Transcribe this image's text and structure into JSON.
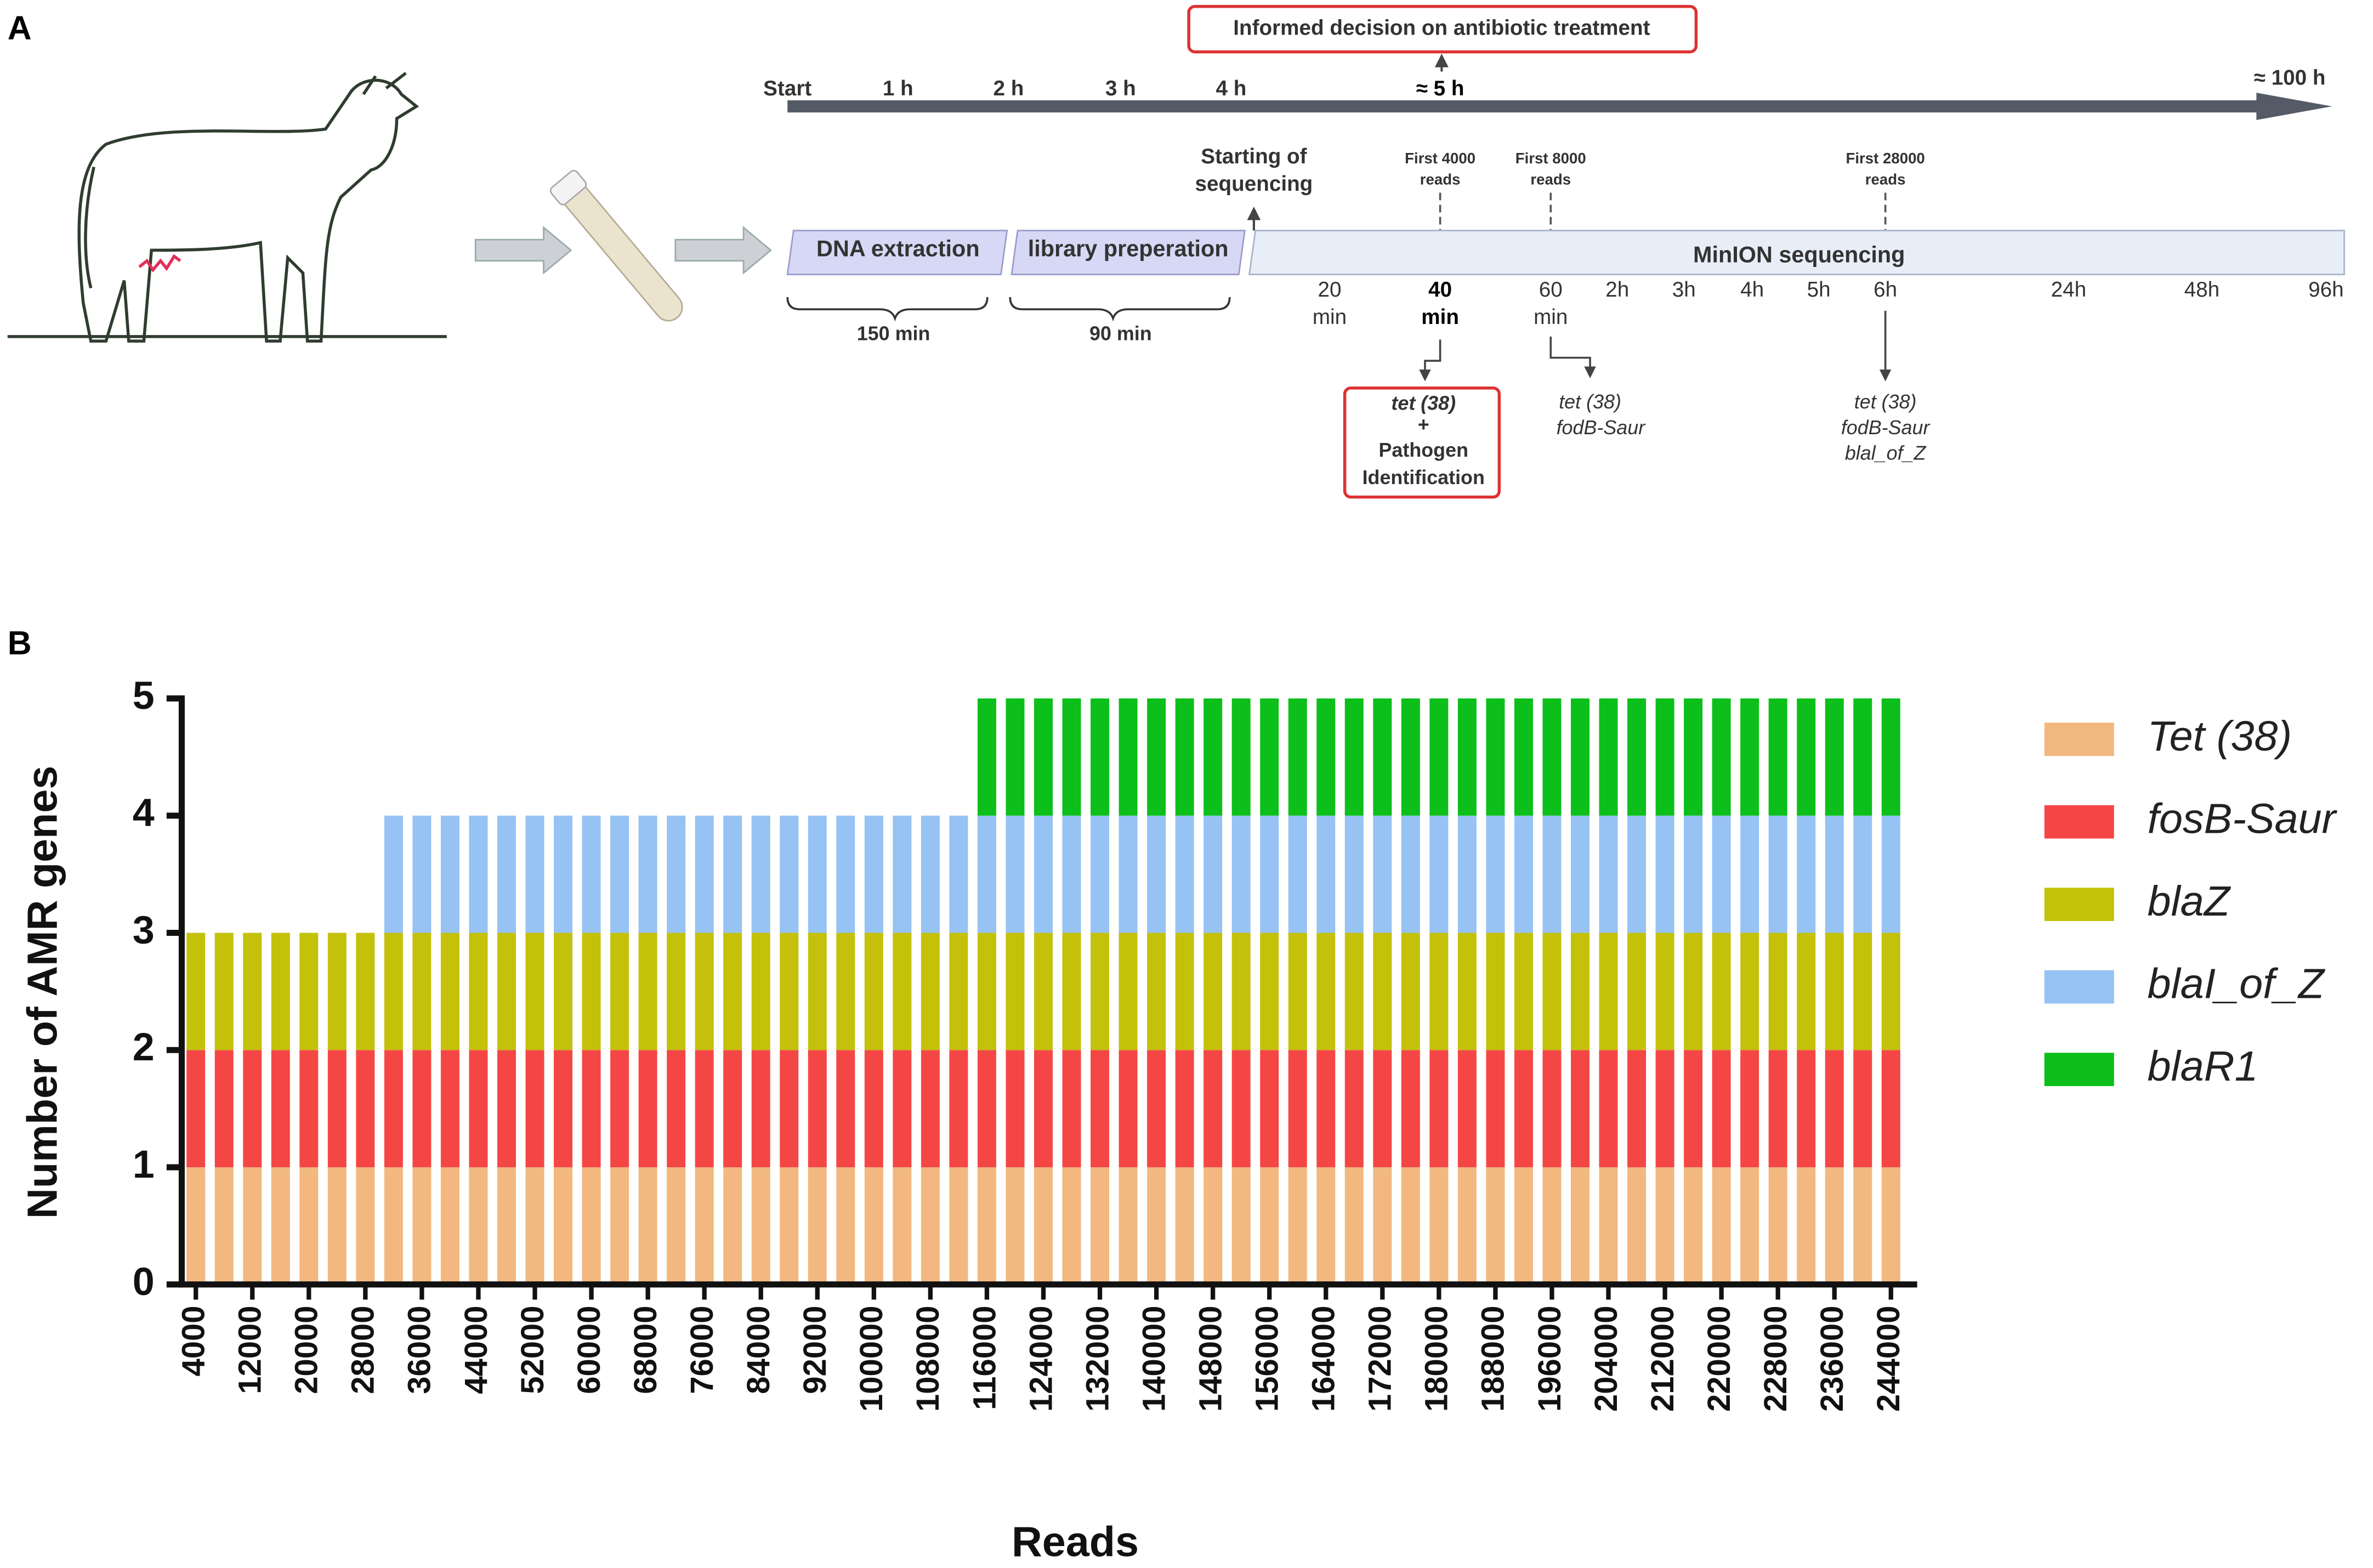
{
  "panel_a": {
    "panel_label": "A",
    "decision": "Informed decision on antibiotic treatment",
    "timeline": {
      "start": "Start",
      "h1": "1 h",
      "h2": "2 h",
      "h3": "3 h",
      "h4": "4 h",
      "h5": "≈ 5 h",
      "h100": "≈ 100 h"
    },
    "start_sequencing": [
      "Starting of",
      "sequencing"
    ],
    "first_4000": [
      "First 4000",
      "reads"
    ],
    "first_8000": [
      "First 8000",
      "reads"
    ],
    "first_28000": [
      "First 28000",
      "reads"
    ],
    "steps": {
      "dna": "DNA extraction",
      "library": "library preperation",
      "minion": "MinION sequencing"
    },
    "durations": {
      "dna": "150 min",
      "library": "90 min"
    },
    "scale": {
      "m20": [
        "20",
        "min"
      ],
      "m40": [
        "40",
        "min"
      ],
      "m60": [
        "60",
        "min"
      ],
      "h2": "2h",
      "h3": "3h",
      "h4": "4h",
      "h5": "5h",
      "h6": "6h",
      "h24": "24h",
      "h48": "48h",
      "h96": "96h"
    },
    "result_40": [
      "tet (38)",
      "+",
      "Pathogen",
      "Identification"
    ],
    "result_60": [
      "tet (38)",
      "fodB-Saur"
    ],
    "result_6h": [
      "tet (38)",
      "fodB-Saur",
      "blal_of_Z"
    ]
  },
  "chart_data": {
    "type": "stacked_bar",
    "panel_label": "B",
    "x_label": "Reads",
    "y_label": "Number of AMR genes",
    "categories": [
      "4000",
      null,
      "12000",
      null,
      "20000",
      null,
      "28000",
      null,
      "36000",
      null,
      "44000",
      null,
      "52000",
      null,
      "60000",
      null,
      "68000",
      null,
      "76000",
      null,
      "84000",
      null,
      "92000",
      null,
      "100000",
      null,
      "108000",
      null,
      "116000",
      null,
      "124000",
      null,
      "132000",
      null,
      "140000",
      null,
      "148000",
      null,
      "156000",
      null,
      "164000",
      null,
      "172000",
      null,
      "180000",
      null,
      "188000",
      null,
      "196000",
      null,
      "204000",
      null,
      "212000",
      null,
      "220000",
      null,
      "228000",
      null,
      "236000",
      null,
      "244000"
    ],
    "series": [
      {
        "name": "Tet (38)",
        "color": "#f2b880",
        "values": [
          1,
          1,
          1,
          1,
          1,
          1,
          1,
          1,
          1,
          1,
          1,
          1,
          1,
          1,
          1,
          1,
          1,
          1,
          1,
          1,
          1,
          1,
          1,
          1,
          1,
          1,
          1,
          1,
          1,
          1,
          1,
          1,
          1,
          1,
          1,
          1,
          1,
          1,
          1,
          1,
          1,
          1,
          1,
          1,
          1,
          1,
          1,
          1,
          1,
          1,
          1,
          1,
          1,
          1,
          1,
          1,
          1,
          1,
          1,
          1,
          1
        ]
      },
      {
        "name": "fosB-Saur",
        "color": "#f54646",
        "values": [
          1,
          1,
          1,
          1,
          1,
          1,
          1,
          1,
          1,
          1,
          1,
          1,
          1,
          1,
          1,
          1,
          1,
          1,
          1,
          1,
          1,
          1,
          1,
          1,
          1,
          1,
          1,
          1,
          1,
          1,
          1,
          1,
          1,
          1,
          1,
          1,
          1,
          1,
          1,
          1,
          1,
          1,
          1,
          1,
          1,
          1,
          1,
          1,
          1,
          1,
          1,
          1,
          1,
          1,
          1,
          1,
          1,
          1,
          1,
          1,
          1
        ]
      },
      {
        "name": "blaZ",
        "color": "#c4c10a",
        "values": [
          1,
          1,
          1,
          1,
          1,
          1,
          1,
          1,
          1,
          1,
          1,
          1,
          1,
          1,
          1,
          1,
          1,
          1,
          1,
          1,
          1,
          1,
          1,
          1,
          1,
          1,
          1,
          1,
          1,
          1,
          1,
          1,
          1,
          1,
          1,
          1,
          1,
          1,
          1,
          1,
          1,
          1,
          1,
          1,
          1,
          1,
          1,
          1,
          1,
          1,
          1,
          1,
          1,
          1,
          1,
          1,
          1,
          1,
          1,
          1,
          1
        ]
      },
      {
        "name": "blaI_of_Z",
        "color": "#96c3f4",
        "values": [
          0,
          0,
          0,
          0,
          0,
          0,
          0,
          1,
          1,
          1,
          1,
          1,
          1,
          1,
          1,
          1,
          1,
          1,
          1,
          1,
          1,
          1,
          1,
          1,
          1,
          1,
          1,
          1,
          1,
          1,
          1,
          1,
          1,
          1,
          1,
          1,
          1,
          1,
          1,
          1,
          1,
          1,
          1,
          1,
          1,
          1,
          1,
          1,
          1,
          1,
          1,
          1,
          1,
          1,
          1,
          1,
          1,
          1,
          1,
          1,
          1
        ]
      },
      {
        "name": "blaR1",
        "color": "#0cbf1a",
        "values": [
          0,
          0,
          0,
          0,
          0,
          0,
          0,
          0,
          0,
          0,
          0,
          0,
          0,
          0,
          0,
          0,
          0,
          0,
          0,
          0,
          0,
          0,
          0,
          0,
          0,
          0,
          0,
          0,
          1,
          1,
          1,
          1,
          1,
          1,
          1,
          1,
          1,
          1,
          1,
          1,
          1,
          1,
          1,
          1,
          1,
          1,
          1,
          1,
          1,
          1,
          1,
          1,
          1,
          1,
          1,
          1,
          1,
          1,
          1,
          1,
          1
        ]
      }
    ],
    "ylim": [
      0,
      5
    ],
    "yticks": [
      0,
      1,
      2,
      3,
      4,
      5
    ]
  }
}
